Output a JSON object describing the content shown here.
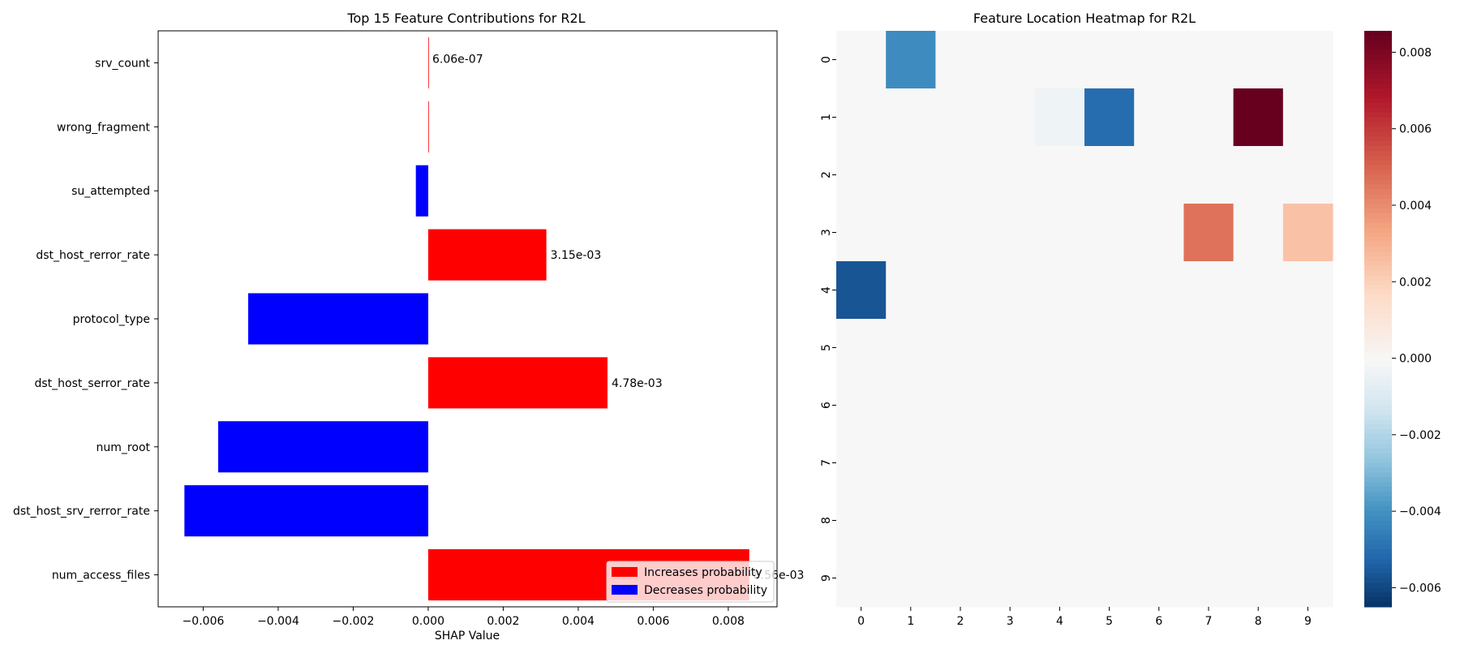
{
  "chart_data": [
    {
      "type": "bar",
      "orientation": "horizontal",
      "title": "Top 15 Feature Contributions for R2L",
      "xlabel": "SHAP Value",
      "ylabel": "",
      "xlim": [
        -0.0072,
        0.0093
      ],
      "xticks": [
        -0.006,
        -0.004,
        -0.002,
        0.0,
        0.002,
        0.004,
        0.006,
        0.008
      ],
      "xtick_labels": [
        "−0.006",
        "−0.004",
        "−0.002",
        "0.000",
        "0.002",
        "0.004",
        "0.006",
        "0.008"
      ],
      "categories": [
        "srv_count",
        "wrong_fragment",
        "su_attempted",
        "dst_host_rerror_rate",
        "protocol_type",
        "dst_host_serror_rate",
        "num_root",
        "dst_host_srv_rerror_rate",
        "num_access_files"
      ],
      "values": [
        6.06e-07,
        1e-05,
        -0.00033,
        0.00315,
        -0.0048,
        0.00478,
        -0.0056,
        -0.0065,
        0.00856
      ],
      "bar_labels": [
        "6.06e-07",
        "",
        "",
        "3.15e-03",
        "",
        "4.78e-03",
        "",
        "",
        "8.56e-03"
      ],
      "colors": {
        "positive": "#ff0000",
        "negative": "#0000ff"
      },
      "legend": {
        "position": "lower-right",
        "entries": [
          {
            "label": "Increases probability",
            "color": "#ff0000"
          },
          {
            "label": "Decreases probability",
            "color": "#0000ff"
          }
        ]
      }
    },
    {
      "type": "heatmap",
      "title": "Feature Location Heatmap for R2L",
      "rows": [
        "0",
        "1",
        "2",
        "3",
        "4",
        "5",
        "6",
        "7",
        "8",
        "9"
      ],
      "cols": [
        "0",
        "1",
        "2",
        "3",
        "4",
        "5",
        "6",
        "7",
        "8",
        "9"
      ],
      "cells": [
        {
          "row": 0,
          "col": 1,
          "value": -0.0041
        },
        {
          "row": 1,
          "col": 4,
          "value": -0.0003
        },
        {
          "row": 1,
          "col": 5,
          "value": -0.005
        },
        {
          "row": 1,
          "col": 8,
          "value": 0.00856
        },
        {
          "row": 3,
          "col": 7,
          "value": 0.0047
        },
        {
          "row": 3,
          "col": 9,
          "value": 0.0025
        },
        {
          "row": 4,
          "col": 0,
          "value": -0.0056
        }
      ],
      "default_value": 0.0,
      "colorbar": {
        "range": [
          -0.0065,
          0.00856
        ],
        "ticks": [
          -0.006,
          -0.004,
          -0.002,
          0.0,
          0.002,
          0.004,
          0.006,
          0.008
        ],
        "tick_labels": [
          "−0.006",
          "−0.004",
          "−0.002",
          "0.000",
          "0.002",
          "0.004",
          "0.006",
          "0.008"
        ]
      },
      "colormap": "RdBu_r"
    }
  ]
}
